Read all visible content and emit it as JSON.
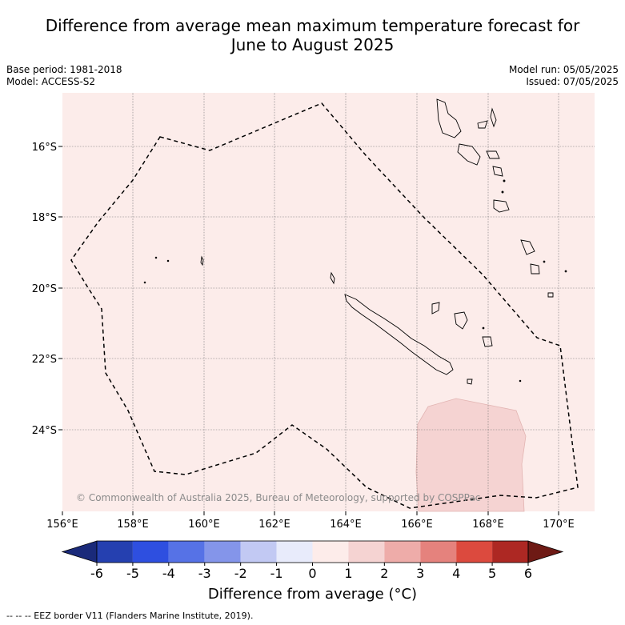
{
  "title_line1": "Difference from average mean maximum temperature forecast for",
  "title_line2": "June to August 2025",
  "meta_left": [
    "Base period: 1981-2018",
    "Model: ACCESS-S2"
  ],
  "meta_right": [
    "Model run: 05/05/2025",
    "Issued: 07/05/2025"
  ],
  "copyright": "© Commonwealth of Australia 2025, Bureau of Meteorology, supported by COSPPac",
  "lon_ticks": [
    "156°E",
    "158°E",
    "160°E",
    "162°E",
    "164°E",
    "166°E",
    "168°E",
    "170°E"
  ],
  "lat_ticks": [
    "16°S",
    "18°S",
    "20°S",
    "22°S",
    "24°S"
  ],
  "colorbar": {
    "labels": [
      "-6",
      "-5",
      "-4",
      "-3",
      "-2",
      "-1",
      "0",
      "1",
      "2",
      "3",
      "4",
      "5",
      "6"
    ],
    "colors": [
      "#1a2a7a",
      "#2540b0",
      "#2e4fe0",
      "#5672e6",
      "#8495ea",
      "#c2c9f3",
      "#e8ebfb",
      "#fdecea",
      "#f5d3d2",
      "#eeaca9",
      "#e5827d",
      "#dc4a3e",
      "#ad2823",
      "#6e1a15"
    ],
    "title": "Difference from average (°C)"
  },
  "footnote": "--  --  -- EEZ border V11 (Flanders Marine Institute, 2019).",
  "colors": {
    "map_background": "#fcecea",
    "warm_patch": "#f5d3d2"
  }
}
